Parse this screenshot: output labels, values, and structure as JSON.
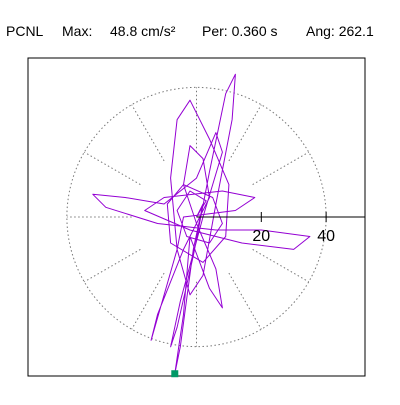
{
  "chart_data": {
    "type": "orbit",
    "title_parts": [
      "PCNL",
      "Max:",
      "48.8 cm/s²",
      "Per:  0.360 s",
      "Ang: 262.1"
    ],
    "xlim": [
      -52,
      52
    ],
    "ylim": [
      -49,
      49
    ],
    "xticks": [
      20,
      40
    ],
    "grid": true,
    "series": [
      {
        "color": "#9400d3",
        "x": [
          0,
          3,
          -2,
          -6,
          -3,
          4,
          8,
          5,
          -4,
          -9,
          -8,
          2,
          9,
          10,
          4,
          -2,
          -6,
          -8,
          -6,
          -2,
          2,
          6,
          11,
          12,
          9,
          4,
          -1,
          -6,
          -8,
          -5,
          2,
          8,
          6,
          0,
          -10,
          -22,
          -32,
          -28,
          -12,
          6,
          20,
          35,
          30,
          14,
          -2,
          -16,
          -10,
          8,
          18,
          12,
          -4,
          -6,
          -10,
          -14,
          -12,
          -4,
          4,
          2,
          -2,
          -4,
          0,
          6,
          8,
          4,
          -2,
          -4,
          -6.7,
          -5,
          -1,
          2,
          0
        ],
        "y": [
          0,
          5,
          8,
          2,
          -6,
          -8,
          -2,
          6,
          10,
          4,
          -8,
          -14,
          -6,
          10,
          24,
          36,
          30,
          12,
          -10,
          -24,
          -18,
          4,
          30,
          44,
          38,
          14,
          -12,
          -34,
          -40,
          -26,
          0,
          20,
          26,
          12,
          4,
          6,
          7,
          3,
          -2,
          -4,
          -4,
          -6,
          -10,
          -8,
          -4,
          2,
          6,
          8,
          6,
          2,
          0,
          -10,
          -24,
          -38,
          -30,
          -10,
          6,
          18,
          22,
          10,
          -2,
          -16,
          -28,
          -22,
          -6,
          -30,
          -48.3,
          -40,
          -10,
          4,
          0
        ]
      }
    ],
    "marker": {
      "x": -6.7,
      "y": -48.3,
      "color": "#009966"
    }
  }
}
